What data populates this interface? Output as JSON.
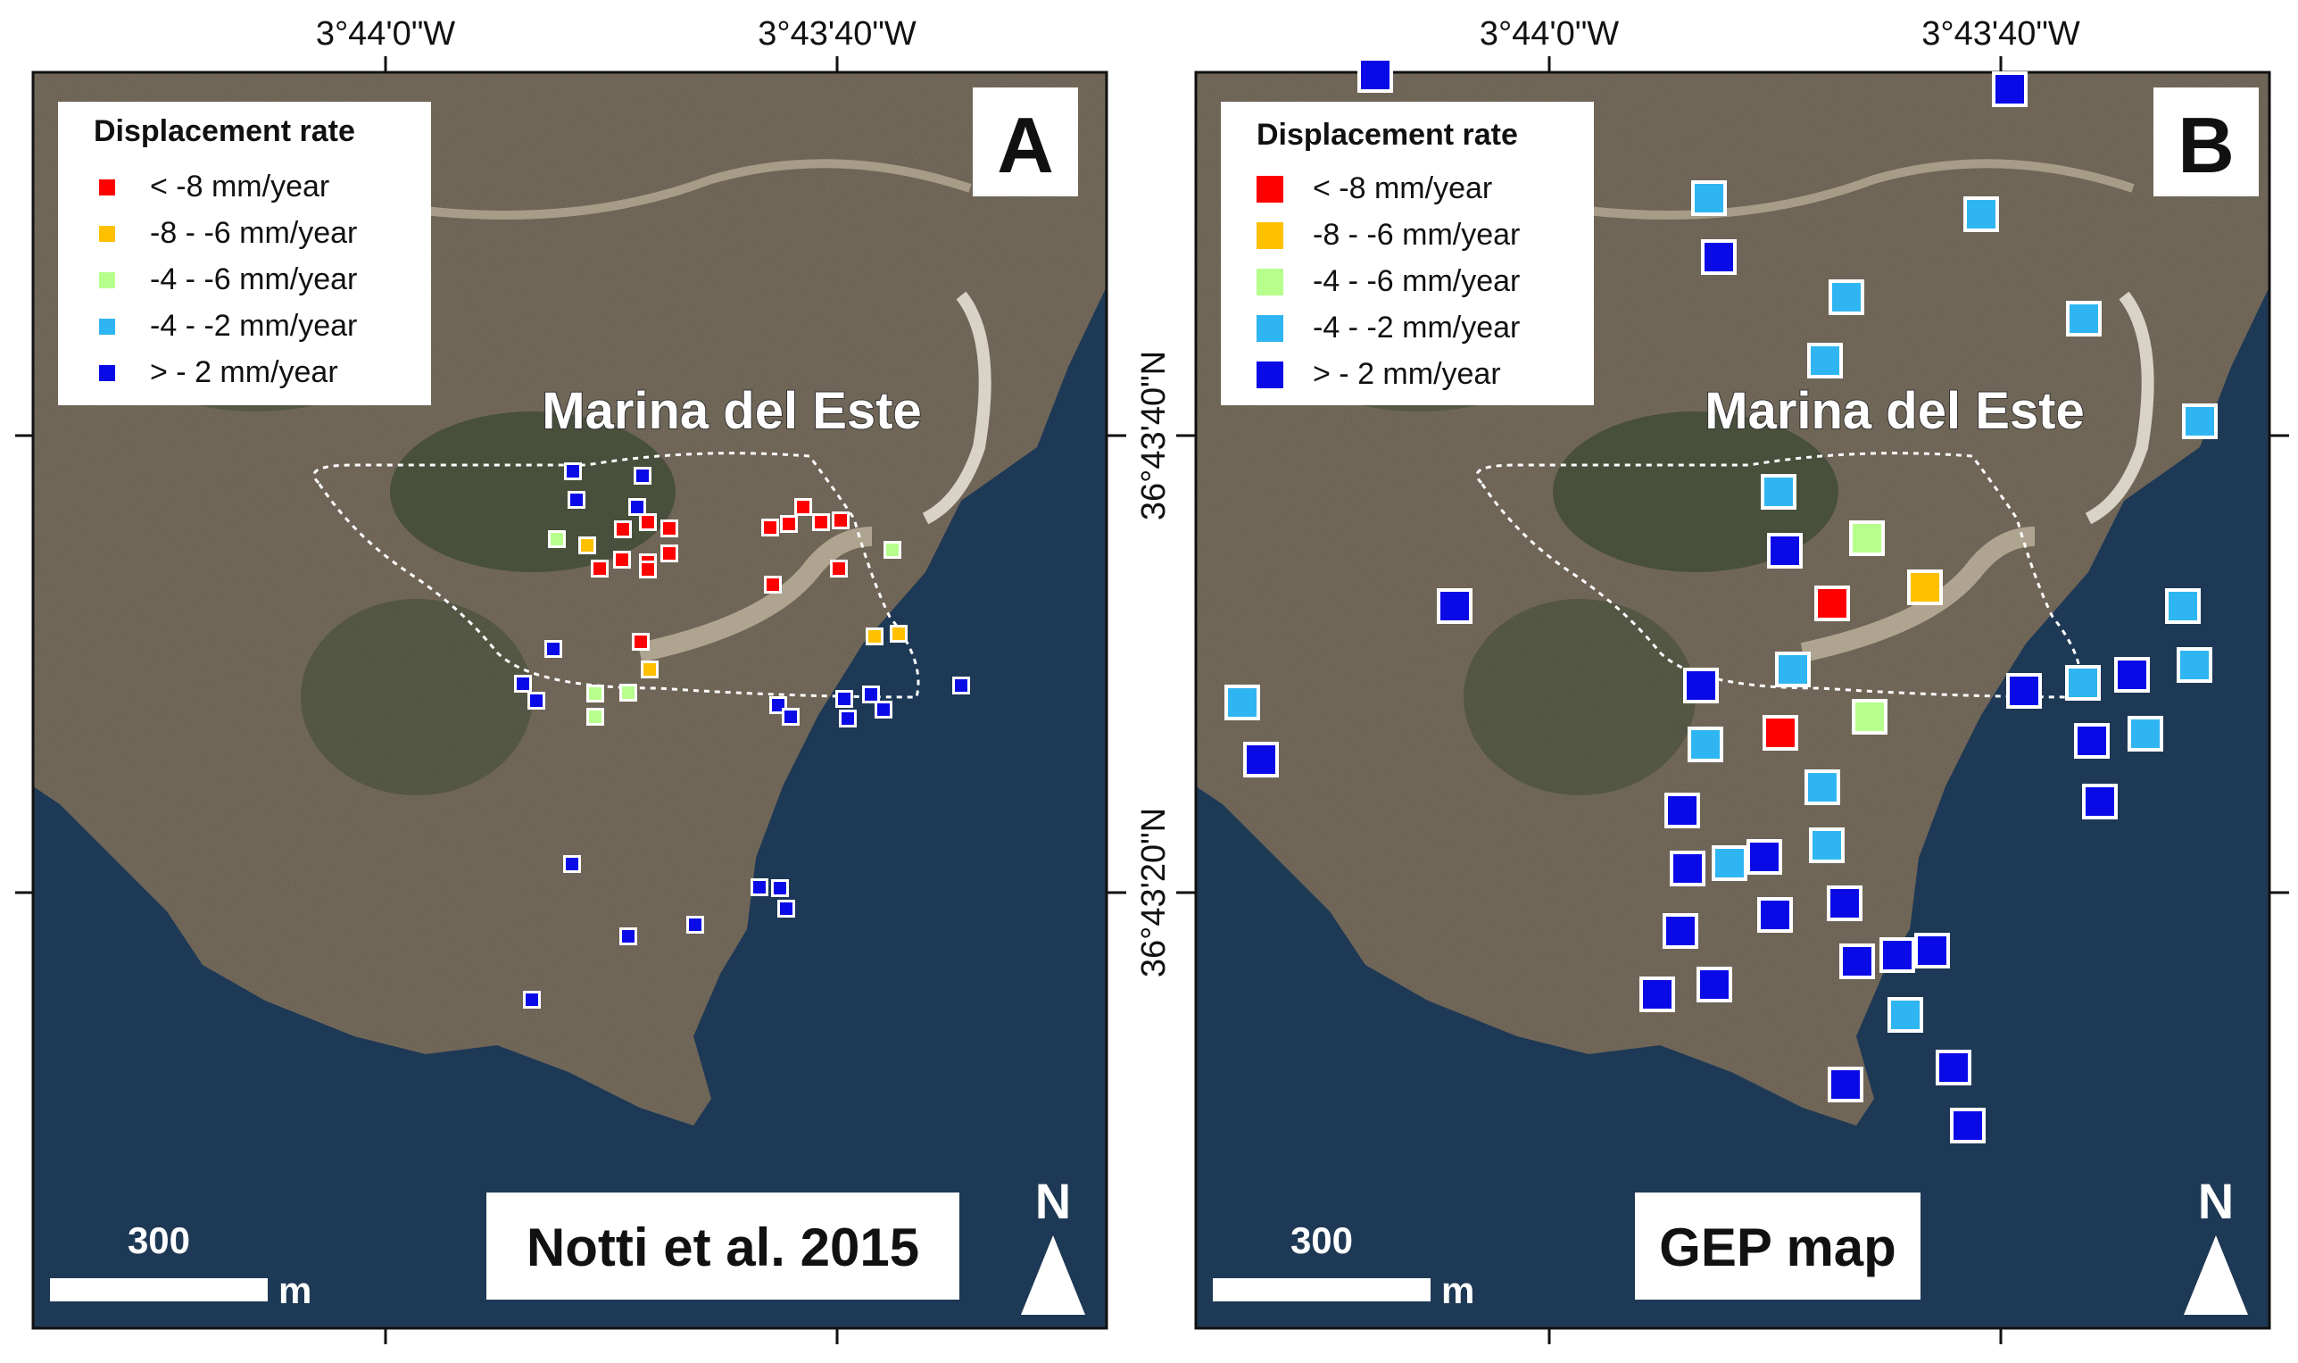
{
  "coords": {
    "lon_left": "3°44'0\"W",
    "lon_right": "3°43'40\"W",
    "lat_top": "36°43'40\"N",
    "lat_bottom": "36°43'20\"N"
  },
  "colors": {
    "red": "#ff0000",
    "orange": "#ffc000",
    "lightgreen": "#b6ff8c",
    "lightblue": "#2fb6f2",
    "blue": "#0a0ae6",
    "sea": "#17334f",
    "land": "#7d7262"
  },
  "legend": {
    "title": "Displacement rate",
    "items": [
      {
        "label": "< -8 mm/year",
        "color_key": "red"
      },
      {
        "label": "-8 - -6 mm/year",
        "color_key": "orange"
      },
      {
        "label": "-4 - -6 mm/year",
        "color_key": "lightgreen"
      },
      {
        "label": "-4 - -2 mm/year",
        "color_key": "lightblue"
      },
      {
        "label": "> - 2 mm/year",
        "color_key": "blue"
      }
    ]
  },
  "place_label": "Marina del Este",
  "north_label": "N",
  "scale": {
    "value": "300",
    "unit": "m"
  },
  "panels": [
    {
      "letter": "A",
      "source": "Notti et al. 2015"
    },
    {
      "letter": "B",
      "source": "GEP map"
    }
  ]
}
